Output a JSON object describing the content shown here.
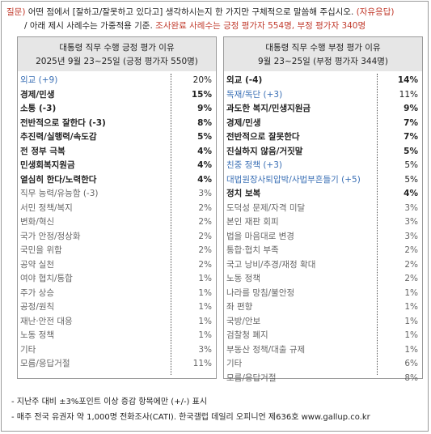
{
  "question": {
    "tag": "질문)",
    "line1_main": "어떤 점에서 [잘하고/잘못하고 있다고] 생각하시는지 한 가지만 구체적으로 말씀해 주십시오.",
    "line1_tail": "(자유응답)",
    "line2_pre": "/ 아래 제시 사례수는 가중적용 기준.",
    "line2_mid": "조사완료 사례수는 긍정 평가자 554명, 부정 평가자 340명"
  },
  "left": {
    "title1": "대통령 직무 수행 긍정 평가 이유",
    "title2": "2025년 9월 23~25일 (긍정 평가자 550명)",
    "rows": [
      {
        "label": "외교 (+9)",
        "value": "20%",
        "style": "blue"
      },
      {
        "label": "경제/민생",
        "value": "15%",
        "style": "bold"
      },
      {
        "label": "소통 (-3)",
        "value": "9%",
        "style": "bold"
      },
      {
        "label": "전반적으로 잘한다 (-3)",
        "value": "8%",
        "style": "bold"
      },
      {
        "label": "추진력/실행력/속도감",
        "value": "5%",
        "style": "bold"
      },
      {
        "label": "전 정부 극복",
        "value": "4%",
        "style": "bold"
      },
      {
        "label": "민생회복지원금",
        "value": "4%",
        "style": "bold"
      },
      {
        "label": "열심히 한다/노력한다",
        "value": "4%",
        "style": "bold"
      },
      {
        "label": "직무 능력/유능함 (-3)",
        "value": "3%",
        "style": "gray"
      },
      {
        "label": "서민 정책/복지",
        "value": "2%",
        "style": "gray"
      },
      {
        "label": "변화/혁신",
        "value": "2%",
        "style": "gray"
      },
      {
        "label": "국가 안정/정상화",
        "value": "2%",
        "style": "gray"
      },
      {
        "label": "국민을 위함",
        "value": "2%",
        "style": "gray"
      },
      {
        "label": "공약 실천",
        "value": "2%",
        "style": "gray"
      },
      {
        "label": "여야 협치/통합",
        "value": "1%",
        "style": "gray"
      },
      {
        "label": "주가 상승",
        "value": "1%",
        "style": "gray"
      },
      {
        "label": "공정/원칙",
        "value": "1%",
        "style": "gray"
      },
      {
        "label": "재난·안전 대응",
        "value": "1%",
        "style": "gray"
      },
      {
        "label": "노동 정책",
        "value": "1%",
        "style": "gray"
      },
      {
        "label": "기타",
        "value": "3%",
        "style": "gray"
      },
      {
        "label": "모름/응답거절",
        "value": "11%",
        "style": "gray"
      }
    ]
  },
  "right": {
    "title1": "대통령 직무 수행 부정 평가 이유",
    "title2": "9월 23~25일 (부정 평가자 344명)",
    "rows": [
      {
        "label": "외교 (-4)",
        "value": "14%",
        "style": "bold"
      },
      {
        "label": "독재/독단 (+3)",
        "value": "11%",
        "style": "blue"
      },
      {
        "label": "과도한 복지/민생지원금",
        "value": "9%",
        "style": "bold"
      },
      {
        "label": "경제/민생",
        "value": "7%",
        "style": "bold"
      },
      {
        "label": "전반적으로 잘못한다",
        "value": "7%",
        "style": "bold"
      },
      {
        "label": "진실하지 않음/거짓말",
        "value": "5%",
        "style": "bold"
      },
      {
        "label": "친중 정책 (+3)",
        "value": "5%",
        "style": "blue"
      },
      {
        "label": "대법원장사퇴압박/사법부흔들기 (+5)",
        "value": "5%",
        "style": "blue"
      },
      {
        "label": "정치 보복",
        "value": "4%",
        "style": "bold"
      },
      {
        "label": "도덕성 문제/자격 미달",
        "value": "3%",
        "style": "gray"
      },
      {
        "label": "본인 재판 회피",
        "value": "3%",
        "style": "gray"
      },
      {
        "label": "법을 마음대로 변경",
        "value": "3%",
        "style": "gray"
      },
      {
        "label": "통합·협치 부족",
        "value": "2%",
        "style": "gray"
      },
      {
        "label": "국고 낭비/추경/재정 확대",
        "value": "2%",
        "style": "gray"
      },
      {
        "label": "노동 정책",
        "value": "2%",
        "style": "gray"
      },
      {
        "label": "나라를 망침/불안정",
        "value": "1%",
        "style": "gray"
      },
      {
        "label": "좌 편향",
        "value": "1%",
        "style": "gray"
      },
      {
        "label": "국방/안보",
        "value": "1%",
        "style": "gray"
      },
      {
        "label": "검찰청 폐지",
        "value": "1%",
        "style": "gray"
      },
      {
        "label": "부동산 정책/대출 규제",
        "value": "1%",
        "style": "gray"
      },
      {
        "label": "기타",
        "value": "6%",
        "style": "gray"
      },
      {
        "label": "모름/응답거절",
        "value": "8%",
        "style": "gray"
      }
    ]
  },
  "footer": {
    "line1": "- 지난주 대비 ±3%포인트 이상 증감 항목에만 (+/-) 표시",
    "line2": "- 매주 전국 유권자 약 1,000명 전화조사(CATI). 한국갤럽 데일리 오피니언 제636호 www.gallup.co.kr"
  }
}
